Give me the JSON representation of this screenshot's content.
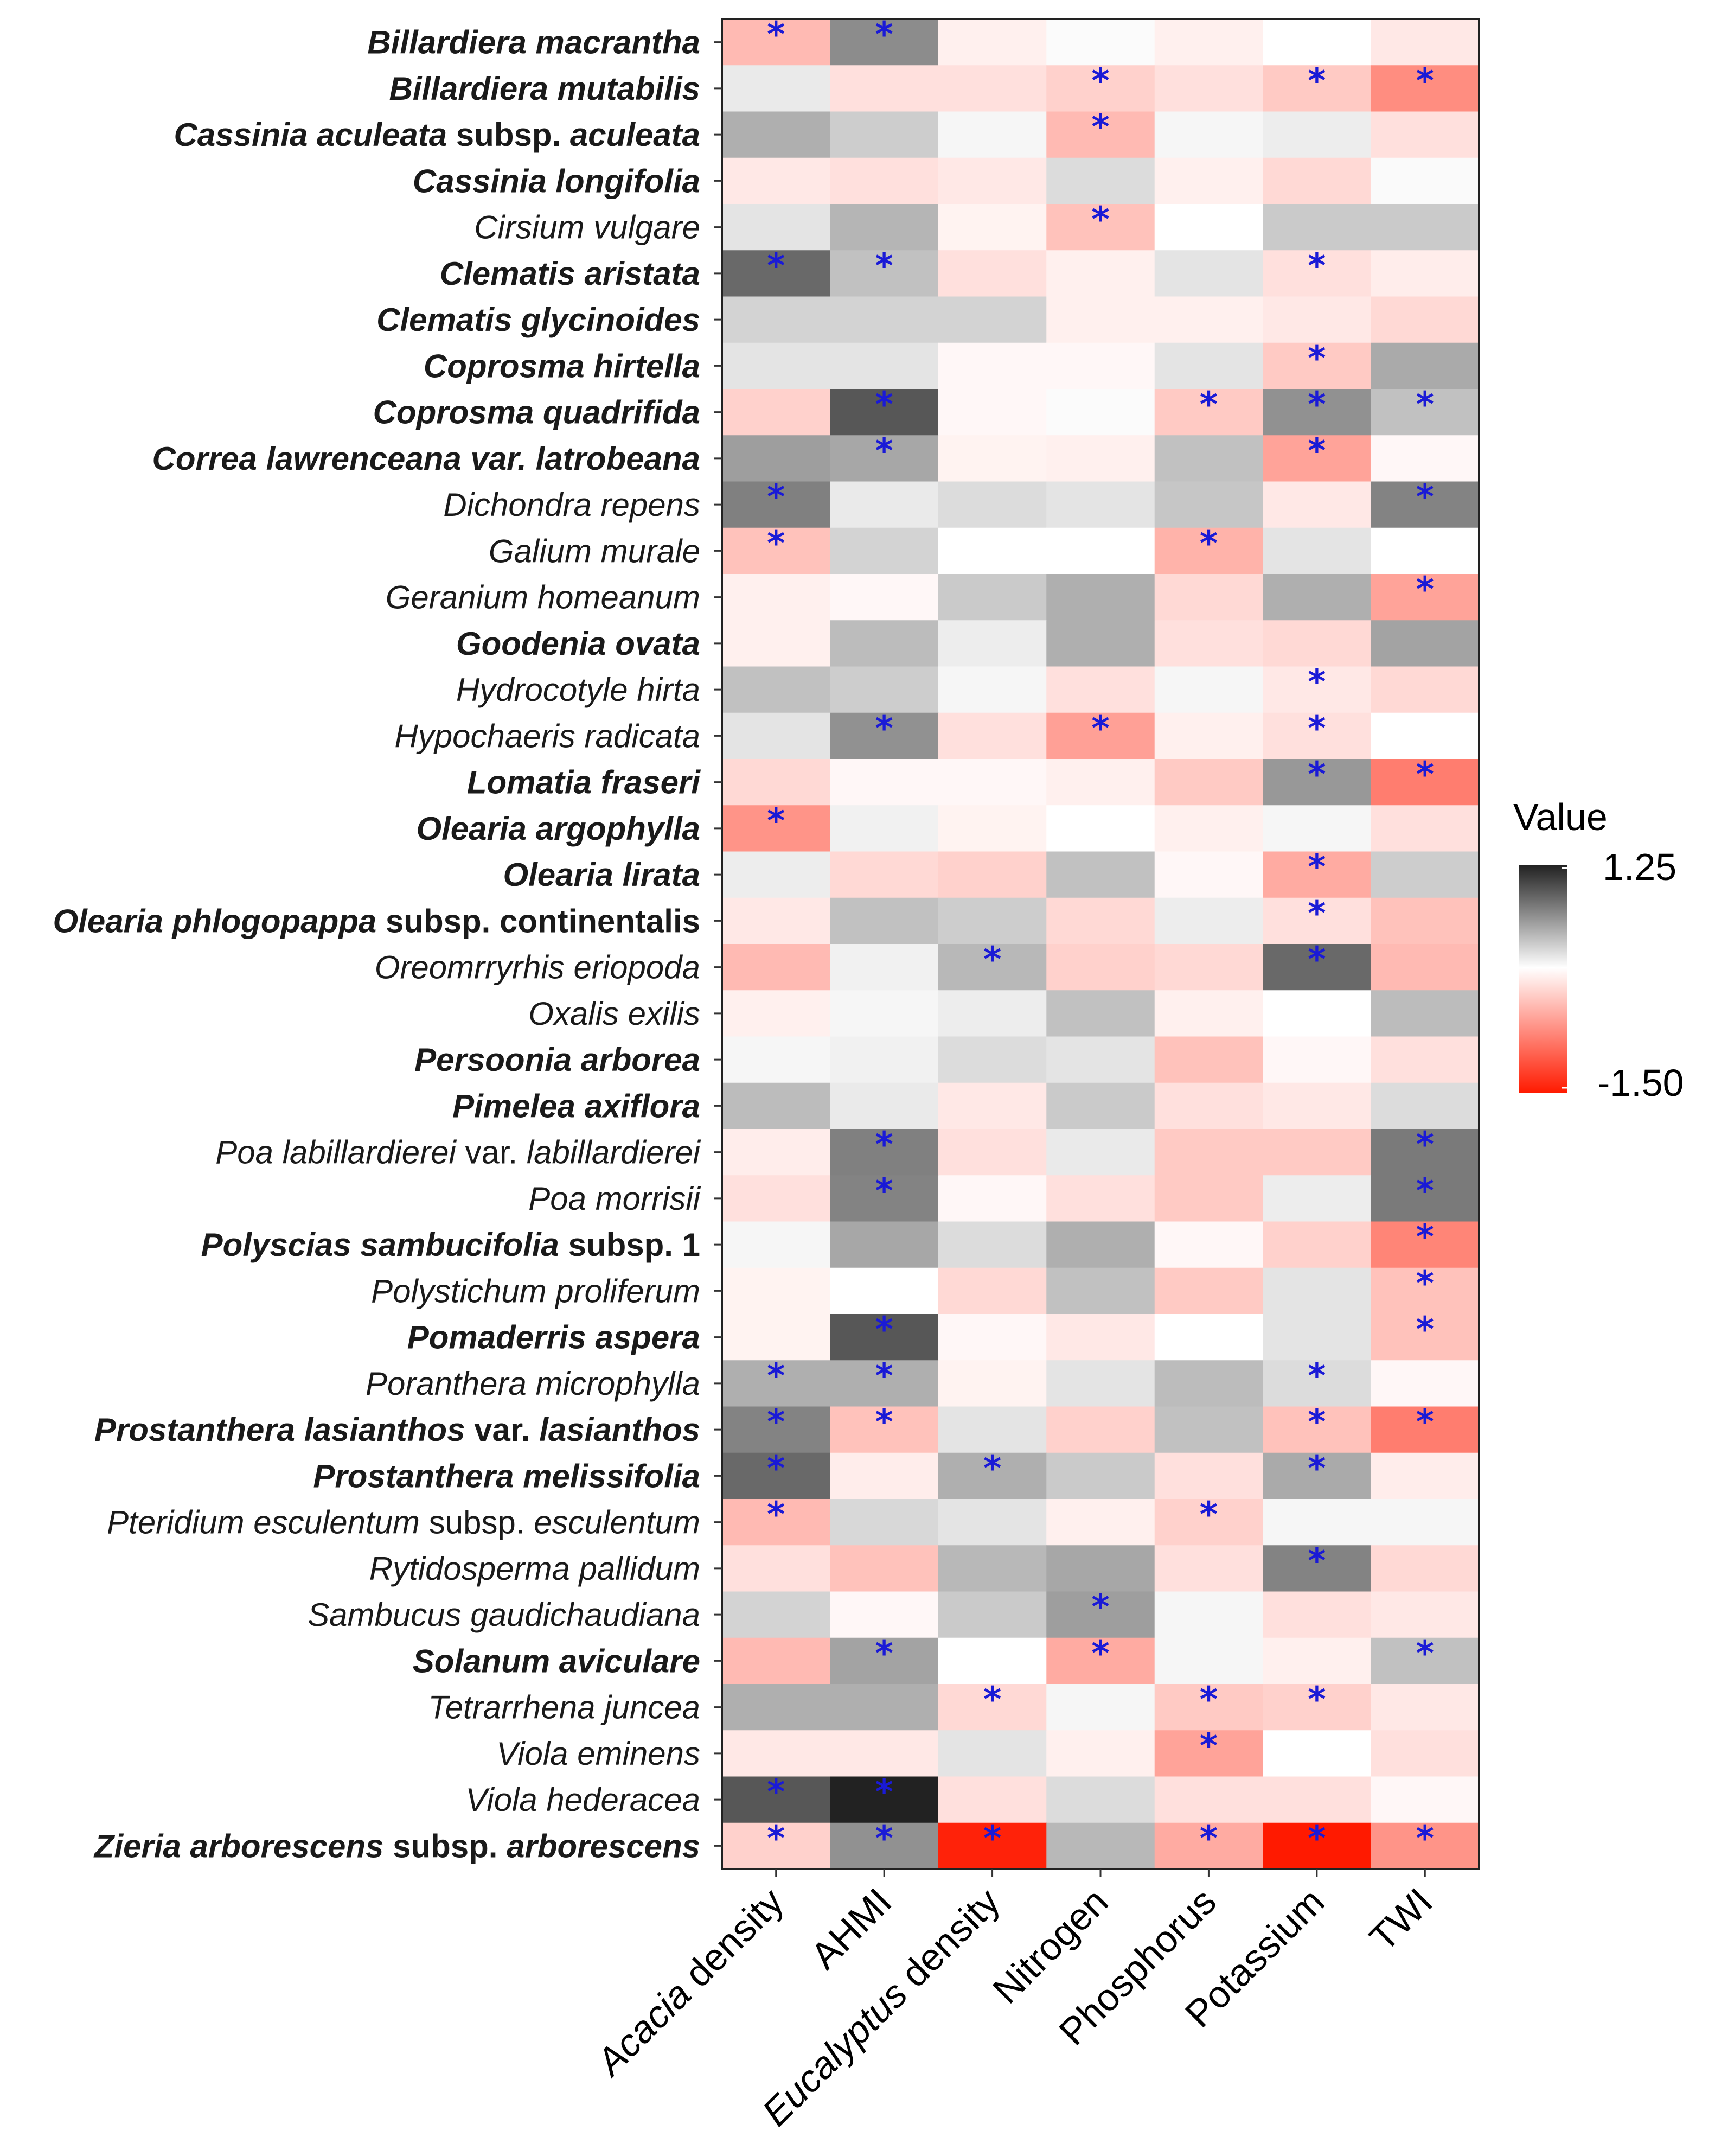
{
  "chart_data": {
    "type": "heatmap",
    "legend": {
      "title": "Value",
      "max": 1.25,
      "min": -1.5,
      "max_label": "1.25",
      "min_label": "-1.50",
      "high_color": "#222222",
      "mid_color": "#ffffff",
      "low_color": "#ff1a00"
    },
    "columns": [
      [
        {
          "t": "Acacia",
          "i": true
        },
        {
          "t": " density",
          "i": false
        }
      ],
      [
        {
          "t": "AHMI",
          "i": false
        }
      ],
      [
        {
          "t": "Eucalyptus",
          "i": true
        },
        {
          "t": " density",
          "i": false
        }
      ],
      [
        {
          "t": "Nitrogen",
          "i": false
        }
      ],
      [
        {
          "t": "Phosphorus",
          "i": false
        }
      ],
      [
        {
          "t": "Potassium",
          "i": false
        }
      ],
      [
        {
          "t": "TWI",
          "i": false
        }
      ]
    ],
    "rows": [
      [
        {
          "t": "Billardiera macrantha",
          "b": true
        }
      ],
      [
        {
          "t": "Billardiera mutabilis",
          "b": true
        }
      ],
      [
        {
          "t": "Cassinia aculeata",
          "b": true
        },
        {
          "t": " subsp. ",
          "b": true,
          "n": true
        },
        {
          "t": "aculeata",
          "b": true
        }
      ],
      [
        {
          "t": "Cassinia longifolia",
          "b": true
        }
      ],
      [
        {
          "t": "Cirsium vulgare",
          "b": false
        }
      ],
      [
        {
          "t": "Clematis aristata",
          "b": true
        }
      ],
      [
        {
          "t": "Clematis glycinoides",
          "b": true
        }
      ],
      [
        {
          "t": "Coprosma hirtella",
          "b": true
        }
      ],
      [
        {
          "t": "Coprosma quadrifida",
          "b": true
        }
      ],
      [
        {
          "t": "Correa lawrenceana var. latrobeana",
          "b": true
        }
      ],
      [
        {
          "t": "Dichondra repens",
          "b": false
        }
      ],
      [
        {
          "t": "Galium murale",
          "b": false
        }
      ],
      [
        {
          "t": "Geranium homeanum",
          "b": false
        }
      ],
      [
        {
          "t": "Goodenia ovata",
          "b": true
        }
      ],
      [
        {
          "t": "Hydrocotyle hirta",
          "b": false
        }
      ],
      [
        {
          "t": "Hypochaeris radicata",
          "b": false
        }
      ],
      [
        {
          "t": "Lomatia fraseri",
          "b": true
        }
      ],
      [
        {
          "t": "Olearia argophylla",
          "b": true
        }
      ],
      [
        {
          "t": "Olearia lirata",
          "b": true
        }
      ],
      [
        {
          "t": "Olearia phlogopappa",
          "b": true
        },
        {
          "t": " subsp. continentalis",
          "b": true,
          "n": true
        }
      ],
      [
        {
          "t": "Oreomrryrhis eriopoda",
          "b": false
        }
      ],
      [
        {
          "t": "Oxalis exilis",
          "b": false
        }
      ],
      [
        {
          "t": "Persoonia arborea",
          "b": true
        }
      ],
      [
        {
          "t": "Pimelea axiflora",
          "b": true
        }
      ],
      [
        {
          "t": "Poa labillardierei",
          "b": false
        },
        {
          "t": " var. ",
          "b": false,
          "n": true
        },
        {
          "t": "labillardierei",
          "b": false
        }
      ],
      [
        {
          "t": "Poa morrisii",
          "b": false
        }
      ],
      [
        {
          "t": "Polyscias sambucifolia",
          "b": true
        },
        {
          "t": " subsp. 1",
          "b": true,
          "n": true
        }
      ],
      [
        {
          "t": "Polystichum proliferum",
          "b": false
        }
      ],
      [
        {
          "t": "Pomaderris aspera",
          "b": true
        }
      ],
      [
        {
          "t": "Poranthera microphylla",
          "b": false
        }
      ],
      [
        {
          "t": "Prostanthera lasianthos",
          "b": true
        },
        {
          "t": " var. ",
          "b": true,
          "n": true
        },
        {
          "t": "lasianthos",
          "b": true
        }
      ],
      [
        {
          "t": "Prostanthera melissifolia",
          "b": true
        }
      ],
      [
        {
          "t": "Pteridium esculentum",
          "b": false
        },
        {
          "t": " subsp. ",
          "b": false,
          "n": true
        },
        {
          "t": "esculentum",
          "b": false
        }
      ],
      [
        {
          "t": "Rytidosperma pallidum",
          "b": false
        }
      ],
      [
        {
          "t": "Sambucus gaudichaudiana",
          "b": false
        }
      ],
      [
        {
          "t": "Solanum aviculare",
          "b": true
        }
      ],
      [
        {
          "t": "Tetrarrhena juncea",
          "b": false
        }
      ],
      [
        {
          "t": "Viola eminens",
          "b": false
        }
      ],
      [
        {
          "t": "Viola hederacea",
          "b": false
        }
      ],
      [
        {
          "t": "Zieria arborescens",
          "b": true
        },
        {
          "t": " subsp. ",
          "b": true,
          "n": true
        },
        {
          "t": "arborescens",
          "b": true
        }
      ]
    ],
    "values": [
      [
        -0.45,
        0.65,
        -0.1,
        0.02,
        -0.1,
        0.0,
        -0.15
      ],
      [
        0.12,
        -0.2,
        -0.2,
        -0.3,
        -0.2,
        -0.35,
        -0.75
      ],
      [
        0.45,
        0.28,
        0.05,
        -0.45,
        0.05,
        0.1,
        -0.2
      ],
      [
        -0.15,
        -0.2,
        -0.15,
        0.2,
        -0.1,
        -0.25,
        0.03
      ],
      [
        0.15,
        0.42,
        -0.08,
        -0.4,
        0.0,
        0.3,
        0.3
      ],
      [
        0.85,
        0.35,
        -0.2,
        -0.1,
        0.15,
        -0.2,
        -0.12
      ],
      [
        0.25,
        0.25,
        0.25,
        -0.1,
        -0.1,
        -0.15,
        -0.25
      ],
      [
        0.15,
        0.15,
        -0.05,
        -0.05,
        0.15,
        -0.35,
        0.48
      ],
      [
        -0.3,
        0.95,
        -0.05,
        0.02,
        -0.35,
        0.62,
        0.35
      ],
      [
        0.55,
        0.5,
        -0.08,
        -0.1,
        0.35,
        -0.6,
        -0.05
      ],
      [
        0.72,
        0.12,
        0.2,
        0.15,
        0.32,
        -0.15,
        0.7
      ],
      [
        -0.4,
        0.25,
        0.0,
        0.0,
        -0.5,
        0.15,
        0.0
      ],
      [
        -0.1,
        -0.05,
        0.3,
        0.45,
        -0.25,
        0.45,
        -0.6
      ],
      [
        -0.1,
        0.38,
        0.1,
        0.45,
        -0.2,
        -0.25,
        0.52
      ],
      [
        0.35,
        0.28,
        0.05,
        -0.2,
        0.05,
        -0.15,
        -0.25
      ],
      [
        0.15,
        0.62,
        -0.2,
        -0.62,
        -0.1,
        -0.2,
        0.0
      ],
      [
        -0.25,
        -0.05,
        -0.05,
        -0.1,
        -0.35,
        0.58,
        -0.85
      ],
      [
        -0.7,
        0.08,
        -0.08,
        0.0,
        -0.1,
        0.05,
        -0.2
      ],
      [
        0.1,
        -0.25,
        -0.3,
        0.35,
        -0.05,
        -0.55,
        0.28
      ],
      [
        -0.15,
        0.35,
        0.28,
        -0.25,
        0.1,
        -0.2,
        -0.4
      ],
      [
        -0.45,
        0.08,
        0.4,
        -0.3,
        -0.25,
        0.85,
        -0.45
      ],
      [
        -0.1,
        0.05,
        0.1,
        0.35,
        -0.1,
        0.0,
        0.38
      ],
      [
        0.05,
        0.08,
        0.2,
        0.15,
        -0.4,
        -0.05,
        -0.2
      ],
      [
        0.38,
        0.12,
        -0.15,
        0.3,
        -0.2,
        -0.15,
        0.2
      ],
      [
        -0.12,
        0.72,
        -0.2,
        0.12,
        -0.35,
        -0.35,
        0.75
      ],
      [
        -0.2,
        0.7,
        -0.05,
        -0.2,
        -0.35,
        0.1,
        0.75
      ],
      [
        0.05,
        0.5,
        0.2,
        0.45,
        -0.05,
        -0.3,
        -0.8
      ],
      [
        -0.08,
        0.0,
        -0.25,
        0.35,
        -0.35,
        0.15,
        -0.4
      ],
      [
        -0.08,
        0.95,
        -0.05,
        -0.15,
        0.0,
        0.15,
        -0.4
      ],
      [
        0.45,
        0.45,
        -0.08,
        0.15,
        0.38,
        0.2,
        -0.05
      ],
      [
        0.7,
        -0.4,
        0.15,
        -0.3,
        0.35,
        -0.4,
        -0.85
      ],
      [
        0.85,
        -0.12,
        0.45,
        0.3,
        -0.2,
        0.48,
        -0.12
      ],
      [
        -0.45,
        0.22,
        0.15,
        -0.1,
        -0.3,
        0.05,
        0.05
      ],
      [
        -0.2,
        -0.4,
        0.4,
        0.5,
        -0.2,
        0.7,
        -0.25
      ],
      [
        0.25,
        -0.05,
        0.3,
        0.55,
        0.05,
        -0.2,
        -0.15
      ],
      [
        -0.45,
        0.52,
        0.0,
        -0.55,
        0.05,
        -0.1,
        0.35
      ],
      [
        0.45,
        0.45,
        -0.25,
        0.05,
        -0.35,
        -0.3,
        -0.15
      ],
      [
        -0.15,
        -0.15,
        0.15,
        -0.1,
        -0.6,
        0.0,
        -0.2
      ],
      [
        0.95,
        1.25,
        -0.2,
        0.2,
        -0.2,
        -0.2,
        -0.05
      ],
      [
        -0.3,
        0.62,
        -1.45,
        0.4,
        -0.55,
        -1.5,
        -0.7
      ]
    ],
    "significance_marker": "*",
    "significant": [
      [
        0,
        0
      ],
      [
        0,
        1
      ],
      [
        1,
        3
      ],
      [
        1,
        5
      ],
      [
        1,
        6
      ],
      [
        2,
        3
      ],
      [
        4,
        3
      ],
      [
        5,
        0
      ],
      [
        5,
        1
      ],
      [
        5,
        5
      ],
      [
        7,
        5
      ],
      [
        8,
        1
      ],
      [
        8,
        4
      ],
      [
        8,
        5
      ],
      [
        8,
        6
      ],
      [
        9,
        1
      ],
      [
        9,
        5
      ],
      [
        10,
        0
      ],
      [
        10,
        6
      ],
      [
        11,
        0
      ],
      [
        11,
        4
      ],
      [
        12,
        6
      ],
      [
        14,
        5
      ],
      [
        15,
        1
      ],
      [
        15,
        3
      ],
      [
        15,
        5
      ],
      [
        16,
        5
      ],
      [
        16,
        6
      ],
      [
        17,
        0
      ],
      [
        18,
        5
      ],
      [
        19,
        5
      ],
      [
        20,
        2
      ],
      [
        20,
        5
      ],
      [
        24,
        1
      ],
      [
        24,
        6
      ],
      [
        25,
        1
      ],
      [
        25,
        6
      ],
      [
        26,
        6
      ],
      [
        27,
        6
      ],
      [
        28,
        1
      ],
      [
        28,
        6
      ],
      [
        29,
        0
      ],
      [
        29,
        1
      ],
      [
        29,
        5
      ],
      [
        30,
        0
      ],
      [
        30,
        1
      ],
      [
        30,
        5
      ],
      [
        30,
        6
      ],
      [
        31,
        0
      ],
      [
        31,
        2
      ],
      [
        31,
        5
      ],
      [
        32,
        0
      ],
      [
        32,
        4
      ],
      [
        33,
        5
      ],
      [
        34,
        3
      ],
      [
        35,
        1
      ],
      [
        35,
        3
      ],
      [
        35,
        6
      ],
      [
        36,
        2
      ],
      [
        36,
        4
      ],
      [
        36,
        5
      ],
      [
        37,
        4
      ],
      [
        38,
        0
      ],
      [
        38,
        1
      ],
      [
        39,
        0
      ],
      [
        39,
        1
      ],
      [
        39,
        2
      ],
      [
        39,
        4
      ],
      [
        39,
        5
      ],
      [
        39,
        6
      ]
    ]
  }
}
